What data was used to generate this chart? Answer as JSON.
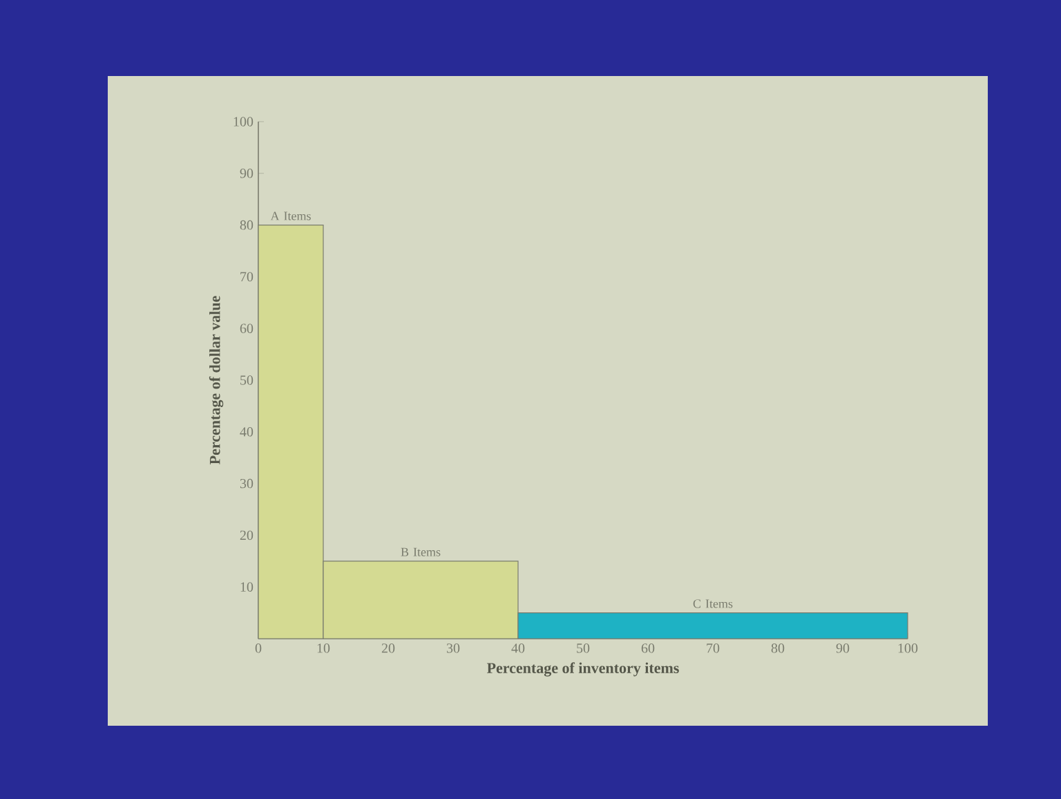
{
  "chart_data": {
    "type": "histogram",
    "xlabel": "Percentage of inventory items",
    "ylabel": "Percentage of dollar value",
    "bins": [
      0,
      10,
      40,
      100
    ],
    "values": [
      80,
      15,
      5
    ],
    "colors": [
      "#d4da92",
      "#d4da92",
      "#1eb2c4"
    ],
    "xlim": [
      0,
      100
    ],
    "ylim": [
      0,
      100
    ],
    "xticks": [
      0,
      10,
      20,
      30,
      40,
      50,
      60,
      70,
      80,
      90,
      100
    ],
    "yticks": [
      10,
      20,
      30,
      40,
      50,
      60,
      70,
      80,
      90,
      100
    ],
    "grid": false,
    "annotations": [
      {
        "text": "A Items",
        "x": 5,
        "y": 80
      },
      {
        "text": "B Items",
        "x": 25,
        "y": 15
      },
      {
        "text": "C Items",
        "x": 70,
        "y": 5
      }
    ]
  }
}
